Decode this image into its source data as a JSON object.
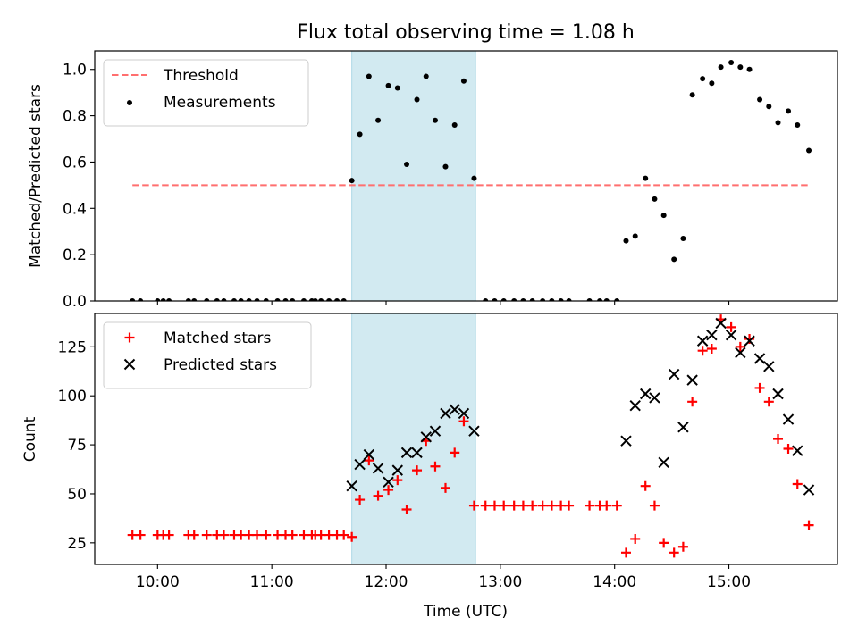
{
  "title": "Flux total observing time = 1.08 h",
  "shade_color": "#add8e6",
  "chart_data": [
    {
      "type": "scatter",
      "ylabel": "Matched/Predicted stars",
      "ylim": [
        0,
        1.08
      ],
      "xlim": [
        9.45,
        15.95
      ],
      "yticks": [
        0,
        0.2,
        0.4,
        0.6,
        0.8,
        1.0
      ],
      "ytick_labels": [
        "0.0",
        "0.2",
        "0.4",
        "0.6",
        "0.8",
        "1.0"
      ],
      "shaded_span": [
        "11:42",
        "12:47"
      ],
      "legend_position": "upper left",
      "threshold": {
        "name": "Threshold",
        "y": 0.5,
        "x_range": [
          9.78,
          15.7
        ],
        "color": "#ff6f6f",
        "style": "dashed"
      },
      "series": [
        {
          "name": "Measurements",
          "marker": "dot",
          "color": "#000000",
          "x": [
            9.78,
            9.85,
            10.0,
            10.05,
            10.1,
            10.27,
            10.32,
            10.43,
            10.52,
            10.58,
            10.67,
            10.73,
            10.8,
            10.87,
            10.95,
            11.05,
            11.12,
            11.18,
            11.28,
            11.35,
            11.38,
            11.43,
            11.5,
            11.57,
            11.63,
            11.7,
            11.77,
            11.85,
            11.93,
            12.02,
            12.1,
            12.18,
            12.27,
            12.35,
            12.43,
            12.52,
            12.6,
            12.68,
            12.77,
            12.87,
            12.95,
            13.03,
            13.12,
            13.2,
            13.28,
            13.37,
            13.45,
            13.53,
            13.6,
            13.78,
            13.87,
            13.93,
            14.02,
            14.1,
            14.18,
            14.27,
            14.35,
            14.43,
            14.52,
            14.6,
            14.68,
            14.77,
            14.85,
            14.93,
            15.02,
            15.1,
            15.18,
            15.27,
            15.35,
            15.43,
            15.52,
            15.6,
            15.7
          ],
          "y": [
            0,
            0,
            0,
            0,
            0,
            0,
            0,
            0,
            0,
            0,
            0,
            0,
            0,
            0,
            0,
            0,
            0,
            0,
            0,
            0,
            0,
            0,
            0,
            0,
            0,
            0.52,
            0.72,
            0.97,
            0.78,
            0.93,
            0.92,
            0.59,
            0.87,
            0.97,
            0.78,
            0.58,
            0.76,
            0.95,
            0.53,
            0,
            0,
            0,
            0,
            0,
            0,
            0,
            0,
            0,
            0,
            0,
            0,
            0,
            0,
            0.26,
            0.28,
            0.53,
            0.44,
            0.37,
            0.18,
            0.27,
            0.89,
            0.96,
            0.94,
            1.01,
            1.03,
            1.01,
            1.0,
            0.87,
            0.84,
            0.77,
            0.82,
            0.76,
            0.65
          ]
        }
      ]
    },
    {
      "type": "scatter",
      "xlabel": "Time (UTC)",
      "ylabel": "Count",
      "ylim": [
        14,
        142
      ],
      "xlim": [
        9.45,
        15.95
      ],
      "yticks": [
        25,
        50,
        75,
        100,
        125
      ],
      "ytick_labels": [
        "25",
        "50",
        "75",
        "100",
        "125"
      ],
      "xticks": [
        10,
        11,
        12,
        13,
        14,
        15
      ],
      "xtick_labels": [
        "10:00",
        "11:00",
        "12:00",
        "13:00",
        "14:00",
        "15:00"
      ],
      "shaded_span": [
        "11:42",
        "12:47"
      ],
      "legend_position": "upper left",
      "series": [
        {
          "name": "Matched stars",
          "marker": "plus",
          "color": "#ff0000",
          "x": [
            9.78,
            9.85,
            10.0,
            10.05,
            10.1,
            10.27,
            10.32,
            10.43,
            10.52,
            10.58,
            10.67,
            10.73,
            10.8,
            10.87,
            10.95,
            11.05,
            11.12,
            11.18,
            11.28,
            11.35,
            11.38,
            11.43,
            11.5,
            11.57,
            11.63,
            11.7,
            11.77,
            11.85,
            11.93,
            12.02,
            12.1,
            12.18,
            12.27,
            12.35,
            12.43,
            12.52,
            12.6,
            12.68,
            12.77,
            12.87,
            12.95,
            13.03,
            13.12,
            13.2,
            13.28,
            13.37,
            13.45,
            13.53,
            13.6,
            13.78,
            13.87,
            13.93,
            14.02,
            14.1,
            14.18,
            14.27,
            14.35,
            14.43,
            14.52,
            14.6,
            14.68,
            14.77,
            14.85,
            14.93,
            15.02,
            15.1,
            15.18,
            15.27,
            15.35,
            15.43,
            15.52,
            15.6,
            15.7
          ],
          "y": [
            29,
            29,
            29,
            29,
            29,
            29,
            29,
            29,
            29,
            29,
            29,
            29,
            29,
            29,
            29,
            29,
            29,
            29,
            29,
            29,
            29,
            29,
            29,
            29,
            29,
            28,
            47,
            67,
            49,
            52,
            57,
            42,
            62,
            77,
            64,
            53,
            71,
            87,
            44,
            44,
            44,
            44,
            44,
            44,
            44,
            44,
            44,
            44,
            44,
            44,
            44,
            44,
            44,
            20,
            27,
            54,
            44,
            25,
            20,
            23,
            97,
            123,
            124,
            139,
            135,
            125,
            129,
            104,
            97,
            78,
            73,
            55,
            34
          ]
        },
        {
          "name": "Predicted stars",
          "marker": "x",
          "color": "#000000",
          "x": [
            11.7,
            11.77,
            11.85,
            11.93,
            12.02,
            12.1,
            12.18,
            12.27,
            12.35,
            12.43,
            12.52,
            12.6,
            12.68,
            12.77,
            14.1,
            14.18,
            14.27,
            14.35,
            14.43,
            14.52,
            14.6,
            14.68,
            14.77,
            14.85,
            14.93,
            15.02,
            15.1,
            15.18,
            15.27,
            15.35,
            15.43,
            15.52,
            15.6,
            15.7
          ],
          "y": [
            54,
            65,
            70,
            63,
            56,
            62,
            71,
            71,
            79,
            82,
            91,
            93,
            91,
            82,
            77,
            95,
            101,
            99,
            66,
            111,
            84,
            108,
            128,
            131,
            137,
            131,
            122,
            128,
            119,
            115,
            101,
            88,
            72,
            52
          ]
        }
      ]
    }
  ]
}
